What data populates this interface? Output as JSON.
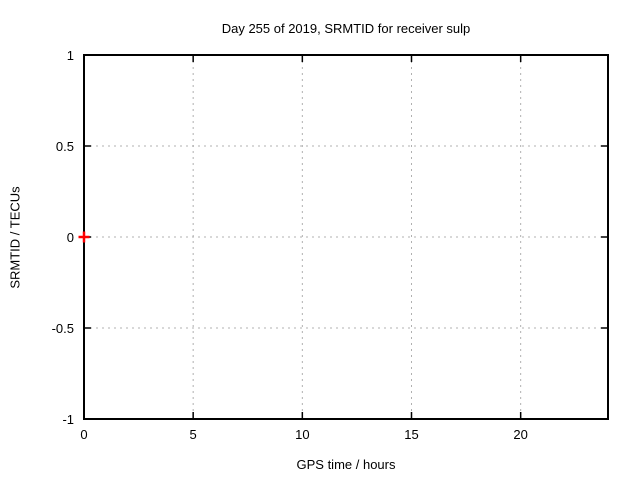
{
  "chart_data": {
    "type": "scatter",
    "title": "Day 255 of 2019, SRMTID for receiver sulp",
    "xlabel": "GPS time / hours",
    "ylabel": "SRMTID / TECUs",
    "xlim": [
      0,
      24
    ],
    "ylim": [
      -1,
      1
    ],
    "x_ticks": [
      {
        "value": 0,
        "label": "0"
      },
      {
        "value": 5,
        "label": "5"
      },
      {
        "value": 10,
        "label": "10"
      },
      {
        "value": 15,
        "label": "15"
      },
      {
        "value": 20,
        "label": "20"
      }
    ],
    "y_ticks": [
      {
        "value": 1,
        "label": "1"
      },
      {
        "value": 0.5,
        "label": "0.5"
      },
      {
        "value": 0,
        "label": "0"
      },
      {
        "value": -0.5,
        "label": "-0.5"
      },
      {
        "value": -1,
        "label": "-1"
      }
    ],
    "grid": true,
    "legend": false,
    "series": [
      {
        "marker": "plus",
        "color": "#ff0000",
        "points": [
          [
            0,
            0
          ]
        ]
      }
    ]
  },
  "colors": {
    "background": "#ffffff",
    "border": "#000000",
    "grid": "#b0b0b0",
    "text": "#000000",
    "marker": "#ff0000"
  }
}
